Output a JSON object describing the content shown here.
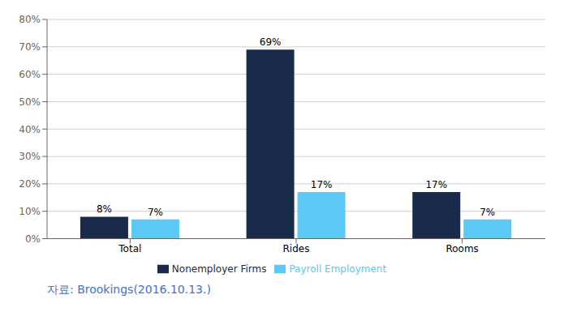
{
  "chart_data": {
    "type": "bar",
    "categories": [
      "Total",
      "Rides",
      "Rooms"
    ],
    "series": [
      {
        "name": "Nonemployer Firms",
        "color": "#1a2a4a",
        "values": [
          8,
          69,
          17
        ],
        "value_labels": [
          "8%",
          "69%",
          "17%"
        ]
      },
      {
        "name": "Payroll Employment",
        "color": "#5bc8f5",
        "values": [
          7,
          17,
          7
        ],
        "value_labels": [
          "7%",
          "17%",
          "7%"
        ]
      }
    ],
    "ylim": [
      0,
      80
    ],
    "yticks": [
      {
        "value": 0,
        "label": "0%"
      },
      {
        "value": 10,
        "label": "10%"
      },
      {
        "value": 20,
        "label": "20%"
      },
      {
        "value": 30,
        "label": "30%"
      },
      {
        "value": 40,
        "label": "40%"
      },
      {
        "value": 50,
        "label": "50%"
      },
      {
        "value": 60,
        "label": "60%"
      },
      {
        "value": 70,
        "label": "70%"
      },
      {
        "value": 80,
        "label": "80%"
      }
    ],
    "grid": true,
    "legend": "bottom",
    "data_labels": true,
    "annotations": [
      "자료:  Brookings(2016.10.13.)"
    ]
  }
}
